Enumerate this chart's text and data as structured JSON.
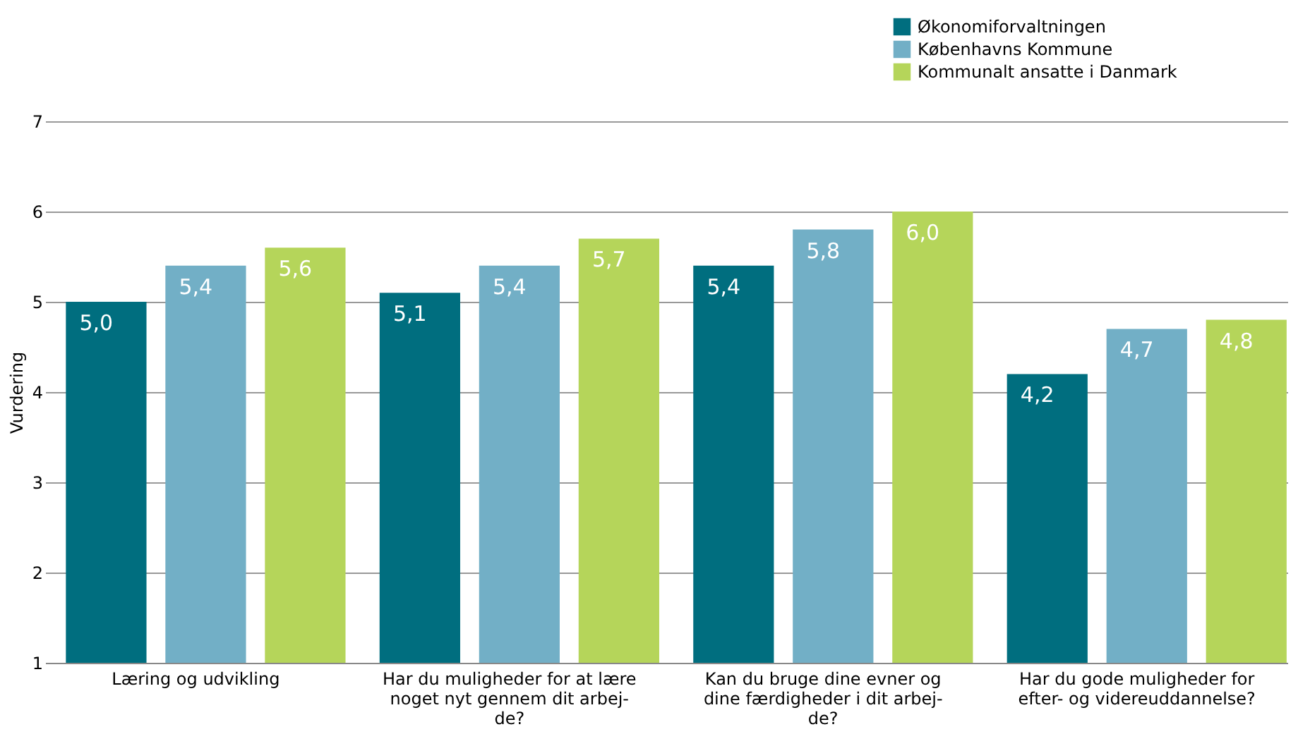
{
  "chart_data": {
    "type": "bar",
    "ylabel": "Vurdering",
    "categories": [
      "Læring og udvikling",
      "Har du muligheder for at lære\nnoget nyt gennem dit arbej-\nde?",
      "Kan du bruge dine evner og\ndine færdigheder i dit arbej-\nde?",
      "Har du gode muligheder for\nefter- og videreuddannelse?"
    ],
    "series": [
      {
        "name": "Økonomiforvaltningen",
        "color": "#006e7f",
        "values": [
          5.0,
          5.1,
          5.4,
          4.2
        ],
        "value_labels": [
          "5,0",
          "5,1",
          "5,4",
          "4,2"
        ]
      },
      {
        "name": "Københavns Kommune",
        "color": "#72afc6",
        "values": [
          5.4,
          5.4,
          5.8,
          4.7
        ],
        "value_labels": [
          "5,4",
          "5,4",
          "5,8",
          "4,7"
        ]
      },
      {
        "name": "Kommunalt ansatte i Danmark",
        "color": "#b5d55a",
        "values": [
          5.6,
          5.7,
          6.0,
          4.8
        ],
        "value_labels": [
          "5,6",
          "5,7",
          "6,0",
          "4,8"
        ]
      }
    ],
    "ylim": [
      1,
      7
    ],
    "yticks": [
      1,
      2,
      3,
      4,
      5,
      6,
      7
    ],
    "grid": "y",
    "legend": "top right"
  }
}
